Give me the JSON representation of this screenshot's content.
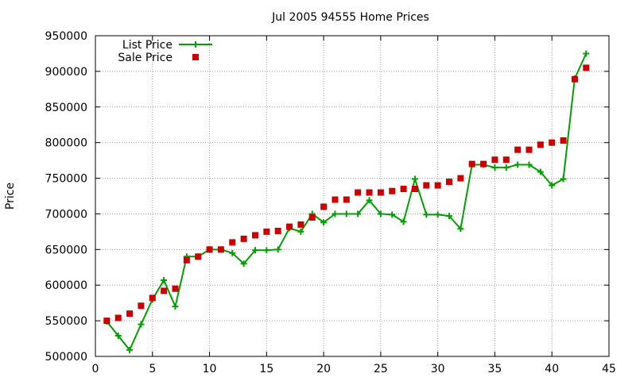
{
  "chart_data": {
    "type": "line",
    "title": "Jul 2005 94555 Home Prices",
    "xlabel": "",
    "ylabel": "Price",
    "xlim": [
      0,
      45
    ],
    "ylim": [
      500000,
      950000
    ],
    "x_ticks": [
      "0",
      "5",
      "10",
      "15",
      "20",
      "25",
      "30",
      "35",
      "40",
      "45"
    ],
    "y_ticks": [
      "500000",
      "550000",
      "600000",
      "650000",
      "700000",
      "750000",
      "800000",
      "850000",
      "900000",
      "950000"
    ],
    "grid": true,
    "legend_position": "top-left",
    "series": [
      {
        "name": "List Price",
        "style": "line-with-plus-markers",
        "color": "#00a000",
        "x": [
          1,
          2,
          3,
          4,
          5,
          6,
          7,
          8,
          9,
          10,
          11,
          12,
          13,
          14,
          15,
          16,
          17,
          18,
          19,
          20,
          21,
          22,
          23,
          24,
          25,
          26,
          27,
          28,
          29,
          30,
          31,
          32,
          33,
          34,
          35,
          36,
          37,
          38,
          39,
          40,
          41,
          42,
          43
        ],
        "y": [
          549000,
          529000,
          509000,
          545000,
          580000,
          607000,
          570000,
          640000,
          640000,
          650000,
          650000,
          645000,
          630000,
          649000,
          649000,
          650000,
          680000,
          675000,
          700000,
          688000,
          700000,
          700000,
          700000,
          719000,
          700000,
          699000,
          689000,
          749000,
          699000,
          699000,
          697000,
          679000,
          769000,
          769000,
          765000,
          765000,
          769000,
          769000,
          759000,
          740000,
          749000,
          890000,
          925000
        ]
      },
      {
        "name": "Sale Price",
        "style": "square-markers",
        "color": "#cc0000",
        "x": [
          1,
          2,
          3,
          4,
          5,
          6,
          7,
          8,
          9,
          10,
          11,
          12,
          13,
          14,
          15,
          16,
          17,
          18,
          19,
          20,
          21,
          22,
          23,
          24,
          25,
          26,
          27,
          28,
          29,
          30,
          31,
          32,
          33,
          34,
          35,
          36,
          37,
          38,
          39,
          40,
          41,
          42,
          43
        ],
        "y": [
          550000,
          554000,
          560000,
          571000,
          582000,
          592000,
          595000,
          635000,
          640000,
          650000,
          650000,
          660000,
          665000,
          670000,
          675000,
          676000,
          682000,
          685000,
          695000,
          710000,
          720000,
          720000,
          730000,
          730000,
          730000,
          732000,
          735000,
          735000,
          740000,
          740000,
          745000,
          750000,
          770000,
          770000,
          776000,
          776000,
          790000,
          790000,
          797000,
          800000,
          803000,
          889000,
          905000
        ]
      }
    ]
  }
}
